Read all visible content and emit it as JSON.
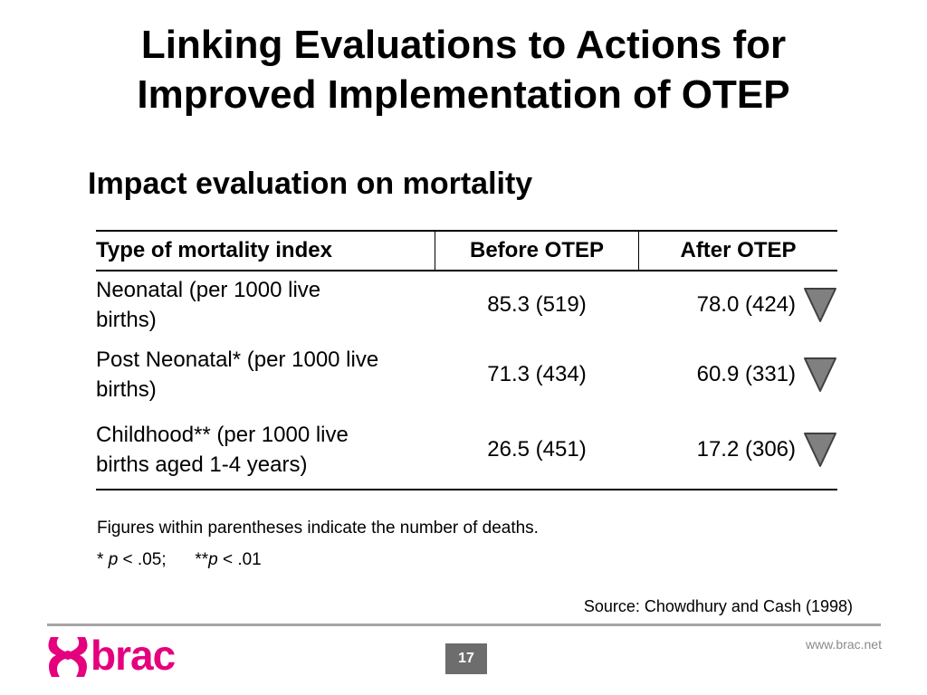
{
  "slide": {
    "title_line1": "Linking Evaluations to Actions for",
    "title_line2": "Improved Implementation of OTEP",
    "subtitle": "Impact evaluation on mortality"
  },
  "table": {
    "headers": [
      "Type of mortality index",
      "Before OTEP",
      "After OTEP"
    ],
    "rows": [
      {
        "index_line1": "Neonatal (per 1000 live",
        "index_line2": "births)",
        "before": "85.3 (519)",
        "after": "78.0 (424)",
        "trend_icon": "down-triangle-icon"
      },
      {
        "index_line1": "Post Neonatal* (per 1000 live",
        "index_line2": "births)",
        "before": "71.3 (434)",
        "after": "60.9 (331)",
        "trend_icon": "down-triangle-icon"
      },
      {
        "index_line1": "Childhood** (per 1000 live",
        "index_line2": "births aged 1-4 years)",
        "before": "26.5 (451)",
        "after": "17.2 (306)",
        "trend_icon": "down-triangle-icon"
      }
    ]
  },
  "notes": {
    "note1": "Figures within parentheses indicate the number of deaths.",
    "sig1_prefix": "* ",
    "sig1_p": "p",
    "sig1_suffix": " < .05;",
    "sig2_prefix": "**",
    "sig2_p": "p",
    "sig2_suffix": " < .01"
  },
  "source": "Source: Chowdhury and Cash (1998)",
  "footer": {
    "logo_text": "brac",
    "page_number": "17",
    "url": "www.brac.net"
  },
  "colors": {
    "brand": "#e5007e",
    "triangle_fill": "#808080",
    "page_badge": "#6d6d6d",
    "rule": "#a6a6a6"
  }
}
